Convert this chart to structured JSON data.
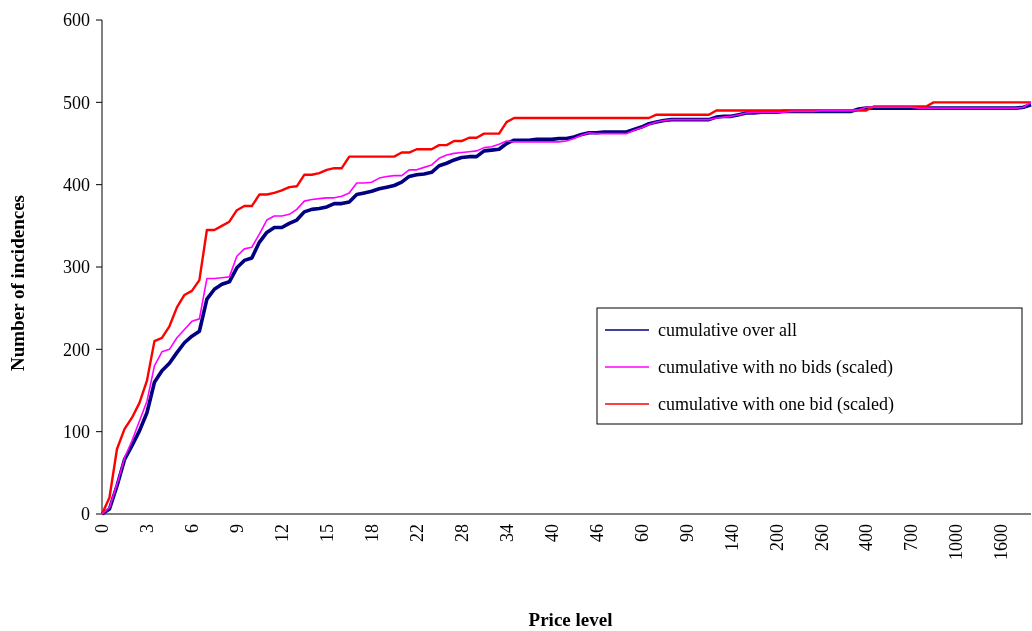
{
  "chart_data": {
    "type": "line",
    "xlabel": "Price level",
    "ylabel": "Number of incidences",
    "categories": [
      "0",
      null,
      null,
      null,
      null,
      null,
      "3",
      null,
      null,
      null,
      null,
      null,
      "6",
      null,
      null,
      null,
      null,
      null,
      "9",
      null,
      null,
      null,
      null,
      null,
      "12",
      null,
      null,
      null,
      null,
      null,
      "15",
      null,
      null,
      null,
      null,
      null,
      "18",
      null,
      null,
      null,
      null,
      null,
      "22",
      null,
      null,
      null,
      null,
      null,
      "28",
      null,
      null,
      null,
      null,
      null,
      "34",
      null,
      null,
      null,
      null,
      null,
      "40",
      null,
      null,
      null,
      null,
      null,
      "46",
      null,
      null,
      null,
      null,
      null,
      "60",
      null,
      null,
      null,
      null,
      null,
      "90",
      null,
      null,
      null,
      null,
      null,
      "140",
      null,
      null,
      null,
      null,
      null,
      "200",
      null,
      null,
      null,
      null,
      null,
      "260",
      null,
      null,
      null,
      null,
      null,
      "400",
      null,
      null,
      null,
      null,
      null,
      "700",
      null,
      null,
      null,
      null,
      null,
      "1000",
      null,
      null,
      null,
      null,
      null,
      "1600",
      null,
      null,
      null,
      null
    ],
    "series": [
      {
        "name": "cumulative over all",
        "color": "#000080",
        "values": [
          0,
          6,
          34,
          66,
          83,
          101,
          123,
          160,
          174,
          183,
          196,
          208,
          216,
          222,
          261,
          273,
          279,
          282,
          299,
          308,
          311,
          330,
          342,
          348,
          348,
          353,
          357,
          367,
          370,
          371,
          373,
          377,
          377,
          379,
          388,
          390,
          392,
          395,
          397,
          399,
          403,
          410,
          412,
          413,
          415,
          423,
          426,
          430,
          433,
          434,
          434,
          441,
          442,
          443,
          450,
          454,
          454,
          454,
          455,
          455,
          455,
          456,
          456,
          458,
          461,
          463,
          463,
          464,
          464,
          464,
          464,
          467,
          470,
          474,
          476,
          478,
          479,
          479,
          479,
          479,
          479,
          479,
          482,
          483,
          483,
          485,
          487,
          487,
          488,
          488,
          488,
          489,
          489,
          489,
          489,
          489,
          489,
          489,
          489,
          489,
          489,
          492,
          493,
          493,
          493,
          493,
          493,
          493,
          493,
          493,
          493,
          493,
          493,
          493,
          493,
          493,
          493,
          493,
          493,
          493,
          493,
          493,
          493,
          494,
          497
        ]
      },
      {
        "name": "cumulative with no bids (scaled)",
        "color": "#ff00ff",
        "values": [
          0,
          8,
          36,
          68,
          89,
          113,
          137,
          180,
          197,
          200,
          214,
          224,
          234,
          237,
          286,
          286,
          287,
          288,
          313,
          322,
          324,
          340,
          357,
          362,
          362,
          364,
          370,
          380,
          382,
          383,
          384,
          384,
          386,
          390,
          402,
          402,
          403,
          408,
          410,
          411,
          411,
          418,
          418,
          421,
          424,
          432,
          436,
          438,
          439,
          440,
          441,
          445,
          446,
          449,
          453,
          452,
          452,
          452,
          452,
          452,
          452,
          452,
          453,
          456,
          460,
          463,
          462,
          462,
          462,
          462,
          462,
          466,
          469,
          473,
          476,
          478,
          479,
          479,
          479,
          479,
          479,
          479,
          481,
          482,
          483,
          485,
          487,
          488,
          488,
          488,
          488,
          488,
          489,
          489,
          489,
          489,
          490,
          490,
          490,
          490,
          490,
          491,
          494,
          494,
          494,
          494,
          494,
          494,
          494,
          493,
          493,
          493,
          493,
          493,
          493,
          493,
          493,
          493,
          493,
          493,
          493,
          493,
          493,
          494,
          500
        ]
      },
      {
        "name": "cumulative with one bid (scaled)",
        "color": "#ff0000",
        "values": [
          0,
          20,
          79,
          103,
          117,
          135,
          162,
          210,
          214,
          228,
          251,
          266,
          271,
          284,
          345,
          345,
          350,
          355,
          369,
          374,
          374,
          388,
          388,
          390,
          393,
          397,
          398,
          412,
          412,
          414,
          418,
          420,
          420,
          434,
          434,
          434,
          434,
          434,
          434,
          434,
          439,
          439,
          443,
          443,
          443,
          448,
          448,
          453,
          453,
          457,
          457,
          462,
          462,
          462,
          476,
          481,
          481,
          481,
          481,
          481,
          481,
          481,
          481,
          481,
          481,
          481,
          481,
          481,
          481,
          481,
          481,
          481,
          481,
          481,
          485,
          485,
          485,
          485,
          485,
          485,
          485,
          485,
          490,
          490,
          490,
          490,
          490,
          490,
          490,
          490,
          490,
          490,
          490,
          490,
          490,
          490,
          490,
          490,
          490,
          490,
          490,
          490,
          490,
          495,
          495,
          495,
          495,
          495,
          495,
          495,
          495,
          500,
          500,
          500,
          500,
          500,
          500,
          500,
          500,
          500,
          500,
          500,
          500,
          500,
          500
        ]
      }
    ],
    "ylim": [
      0,
      600
    ],
    "yticks": [
      0,
      100,
      200,
      300,
      400,
      500,
      600
    ],
    "grid": false,
    "legend": "right",
    "marker": "none",
    "line_style": "solid"
  }
}
